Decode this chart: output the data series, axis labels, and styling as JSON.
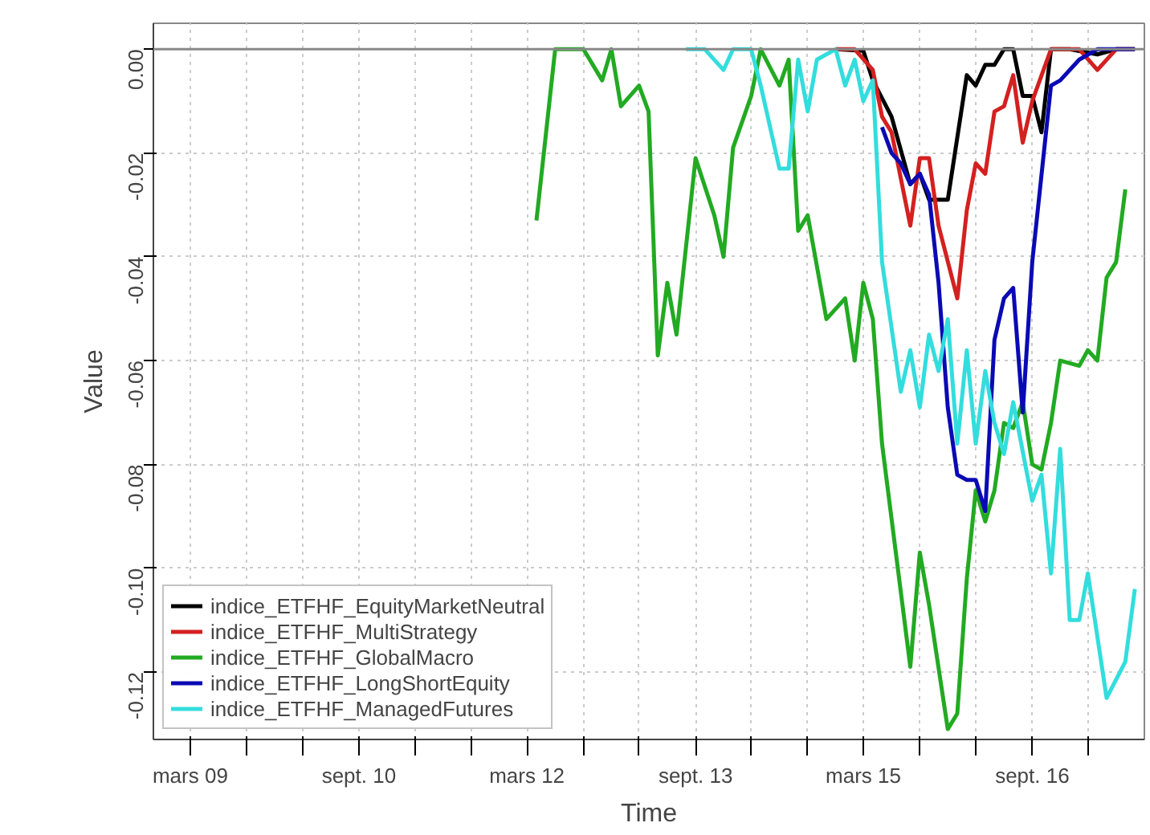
{
  "chart_data": {
    "type": "line",
    "xlabel": "Time",
    "ylabel": "Value",
    "xlim": [
      "2008-11",
      "2017-09"
    ],
    "ylim": [
      -0.133,
      0.005
    ],
    "xticks": [
      {
        "value": "2009-03",
        "label": "mars 09"
      },
      {
        "value": "2009-09",
        "label": null
      },
      {
        "value": "2010-03",
        "label": null
      },
      {
        "value": "2010-09",
        "label": "sept. 10"
      },
      {
        "value": "2011-03",
        "label": null
      },
      {
        "value": "2011-09",
        "label": null
      },
      {
        "value": "2012-03",
        "label": "mars 12"
      },
      {
        "value": "2012-09",
        "label": null
      },
      {
        "value": "2013-03",
        "label": null
      },
      {
        "value": "2013-09",
        "label": "sept. 13"
      },
      {
        "value": "2014-03",
        "label": null
      },
      {
        "value": "2014-09",
        "label": null
      },
      {
        "value": "2015-03",
        "label": "mars 15"
      },
      {
        "value": "2015-09",
        "label": null
      },
      {
        "value": "2016-03",
        "label": null
      },
      {
        "value": "2016-09",
        "label": "sept. 16"
      },
      {
        "value": "2017-03",
        "label": null
      }
    ],
    "yticks": [
      {
        "value": 0,
        "label": "0.00"
      },
      {
        "value": -0.02,
        "label": "-0.02"
      },
      {
        "value": -0.04,
        "label": "-0.04"
      },
      {
        "value": -0.06,
        "label": "-0.06"
      },
      {
        "value": -0.08,
        "label": "-0.08"
      },
      {
        "value": -0.1,
        "label": "-0.10"
      },
      {
        "value": -0.12,
        "label": "-0.12"
      }
    ],
    "grid": true,
    "legend": "bottom left",
    "line_style": "solid",
    "ref_lines": [
      {
        "axis": "y",
        "value": 0,
        "label": null,
        "color": "#888888"
      }
    ],
    "series": [
      {
        "name": "indice_ETFHF_EquityMarketNeutral",
        "color": "#000000",
        "x": [
          "2014-12",
          "2015-03",
          "2015-04",
          "2015-06",
          "2015-08",
          "2015-09",
          "2015-10",
          "2015-12",
          "2016-02",
          "2016-03",
          "2016-04",
          "2016-05",
          "2016-06",
          "2016-07",
          "2016-08",
          "2016-09",
          "2016-10",
          "2016-11",
          "2017-01",
          "2017-04",
          "2017-06",
          "2017-08"
        ],
        "values": [
          0,
          -0.0003,
          -0.006,
          -0.013,
          -0.026,
          -0.024,
          -0.029,
          -0.029,
          -0.005,
          -0.007,
          -0.003,
          -0.003,
          0,
          0,
          -0.009,
          -0.009,
          -0.016,
          0,
          0,
          -0.001,
          0,
          0
        ]
      },
      {
        "name": "indice_ETFHF_MultiStrategy",
        "color": "#d42020",
        "x": [
          "2014-12",
          "2015-02",
          "2015-04",
          "2015-05",
          "2015-06",
          "2015-08",
          "2015-09",
          "2015-10",
          "2015-11",
          "2016-01",
          "2016-02",
          "2016-03",
          "2016-04",
          "2016-05",
          "2016-06",
          "2016-07",
          "2016-08",
          "2016-09",
          "2016-11",
          "2016-12",
          "2017-02",
          "2017-04",
          "2017-06",
          "2017-08"
        ],
        "values": [
          0,
          0,
          -0.004,
          -0.013,
          -0.016,
          -0.034,
          -0.021,
          -0.021,
          -0.034,
          -0.048,
          -0.031,
          -0.022,
          -0.024,
          -0.012,
          -0.011,
          -0.005,
          -0.018,
          -0.01,
          0,
          0,
          0,
          -0.004,
          0,
          0
        ]
      },
      {
        "name": "indice_ETFHF_GlobalMacro",
        "color": "#22aa22",
        "x": [
          "2012-04",
          "2012-06",
          "2012-08",
          "2012-09",
          "2012-11",
          "2012-12",
          "2013-01",
          "2013-03",
          "2013-04",
          "2013-05",
          "2013-06",
          "2013-07",
          "2013-09",
          "2013-11",
          "2013-12",
          "2014-01",
          "2014-03",
          "2014-04",
          "2014-06",
          "2014-07",
          "2014-08",
          "2014-09",
          "2014-11",
          "2015-01",
          "2015-02",
          "2015-03",
          "2015-04",
          "2015-05",
          "2015-08",
          "2015-09",
          "2015-10",
          "2015-12",
          "2016-01",
          "2016-02",
          "2016-03",
          "2016-04",
          "2016-05",
          "2016-06",
          "2016-07",
          "2016-08",
          "2016-09",
          "2016-10",
          "2016-11",
          "2016-12",
          "2017-02",
          "2017-03",
          "2017-04",
          "2017-05",
          "2017-06",
          "2017-07"
        ],
        "values": [
          -0.033,
          0,
          0,
          0,
          -0.006,
          0,
          -0.011,
          -0.007,
          -0.012,
          -0.059,
          -0.045,
          -0.055,
          -0.021,
          -0.032,
          -0.04,
          -0.019,
          -0.009,
          0,
          -0.007,
          -0.002,
          -0.035,
          -0.032,
          -0.052,
          -0.048,
          -0.06,
          -0.045,
          -0.052,
          -0.076,
          -0.119,
          -0.097,
          -0.107,
          -0.131,
          -0.128,
          -0.102,
          -0.085,
          -0.091,
          -0.085,
          -0.072,
          -0.073,
          -0.068,
          -0.08,
          -0.081,
          -0.072,
          -0.06,
          -0.061,
          -0.058,
          -0.06,
          -0.044,
          -0.041,
          -0.027
        ]
      },
      {
        "name": "indice_ETFHF_LongShortEquity",
        "color": "#0a0ab4",
        "x": [
          "2015-05",
          "2015-06",
          "2015-07",
          "2015-08",
          "2015-09",
          "2015-10",
          "2015-11",
          "2015-12",
          "2016-01",
          "2016-02",
          "2016-03",
          "2016-04",
          "2016-05",
          "2016-06",
          "2016-07",
          "2016-08",
          "2016-09",
          "2016-11",
          "2016-12",
          "2017-02",
          "2017-04",
          "2017-06",
          "2017-08"
        ],
        "values": [
          -0.015,
          -0.02,
          -0.022,
          -0.026,
          -0.024,
          -0.028,
          -0.045,
          -0.069,
          -0.082,
          -0.083,
          -0.083,
          -0.089,
          -0.056,
          -0.048,
          -0.046,
          -0.07,
          -0.041,
          -0.007,
          -0.006,
          -0.002,
          0,
          0,
          0
        ]
      },
      {
        "name": "indice_ETFHF_ManagedFutures",
        "color": "#33dddd",
        "x": [
          "2013-08",
          "2013-10",
          "2013-12",
          "2014-01",
          "2014-03",
          "2014-04",
          "2014-06",
          "2014-07",
          "2014-08",
          "2014-09",
          "2014-10",
          "2014-12",
          "2015-01",
          "2015-02",
          "2015-03",
          "2015-04",
          "2015-05",
          "2015-07",
          "2015-08",
          "2015-09",
          "2015-10",
          "2015-11",
          "2015-12",
          "2016-01",
          "2016-02",
          "2016-03",
          "2016-04",
          "2016-05",
          "2016-06",
          "2016-07",
          "2016-09",
          "2016-10",
          "2016-11",
          "2016-12",
          "2017-01",
          "2017-02",
          "2017-03",
          "2017-05",
          "2017-07",
          "2017-08"
        ],
        "values": [
          0,
          0,
          -0.004,
          0,
          0,
          -0.007,
          -0.023,
          -0.023,
          -0.002,
          -0.012,
          -0.002,
          0,
          -0.007,
          -0.002,
          -0.01,
          -0.006,
          -0.041,
          -0.066,
          -0.058,
          -0.069,
          -0.055,
          -0.062,
          -0.052,
          -0.076,
          -0.058,
          -0.076,
          -0.062,
          -0.072,
          -0.078,
          -0.068,
          -0.087,
          -0.082,
          -0.101,
          -0.077,
          -0.11,
          -0.11,
          -0.101,
          -0.125,
          -0.118,
          -0.104
        ]
      }
    ]
  }
}
